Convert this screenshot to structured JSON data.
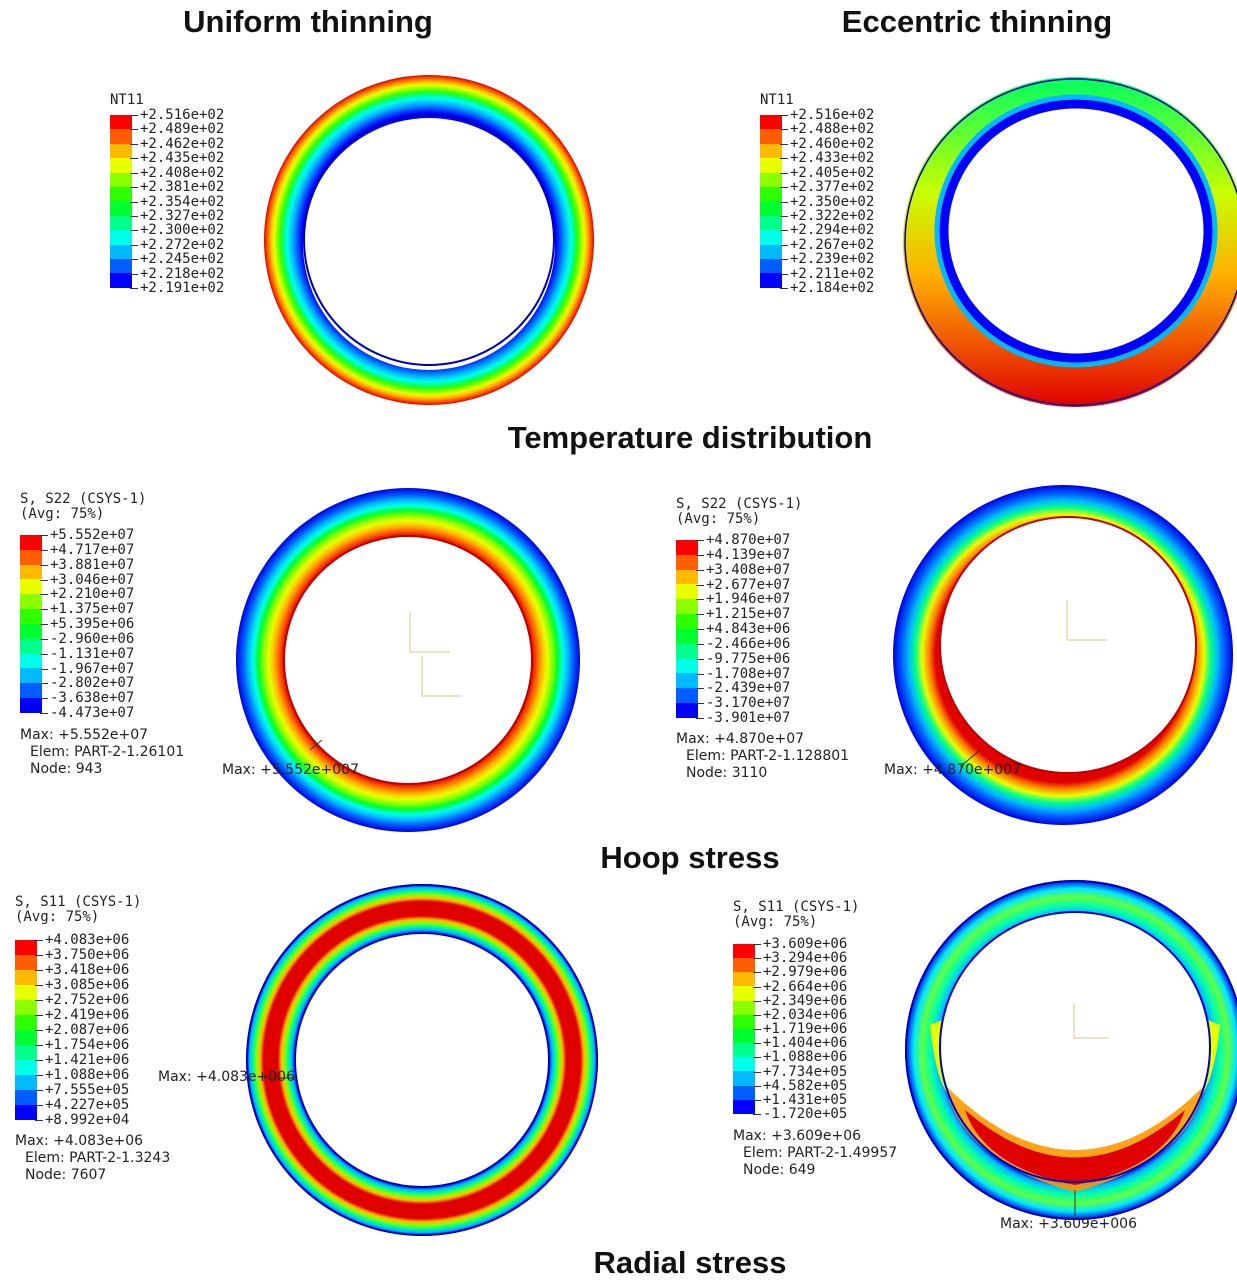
{
  "titles": {
    "uniform": "Uniform thinning",
    "eccentric": "Eccentric thinning",
    "temperature": "Temperature distribution",
    "hoop": "Hoop stress",
    "radial": "Radial stress"
  },
  "colormap": [
    "#0000ff",
    "#005dff",
    "#00b9ff",
    "#00ffe8",
    "#00ff8b",
    "#00ff2e",
    "#2eff00",
    "#8bff00",
    "#e8ff00",
    "#ffb900",
    "#ff5d00",
    "#ff0000"
  ],
  "panels": {
    "temp_uniform": {
      "header": [
        "NT11"
      ],
      "values": [
        "+2.516e+02",
        "+2.489e+02",
        "+2.462e+02",
        "+2.435e+02",
        "+2.408e+02",
        "+2.381e+02",
        "+2.354e+02",
        "+2.327e+02",
        "+2.300e+02",
        "+2.272e+02",
        "+2.245e+02",
        "+2.218e+02",
        "+2.191e+02"
      ]
    },
    "temp_eccentric": {
      "header": [
        "NT11"
      ],
      "values": [
        "+2.516e+02",
        "+2.488e+02",
        "+2.460e+02",
        "+2.433e+02",
        "+2.405e+02",
        "+2.377e+02",
        "+2.350e+02",
        "+2.322e+02",
        "+2.294e+02",
        "+2.267e+02",
        "+2.239e+02",
        "+2.211e+02",
        "+2.184e+02"
      ]
    },
    "hoop_uniform": {
      "header": [
        "S, S22 (CSYS-1)",
        "(Avg: 75%)"
      ],
      "values": [
        "+5.552e+07",
        "+4.717e+07",
        "+3.881e+07",
        "+3.046e+07",
        "+2.210e+07",
        "+1.375e+07",
        "+5.395e+06",
        "-2.960e+06",
        "-1.131e+07",
        "-1.967e+07",
        "-2.802e+07",
        "-3.638e+07",
        "-4.473e+07"
      ],
      "info": [
        "Max: +5.552e+07",
        "Elem: PART-2-1.26101",
        "Node: 943"
      ],
      "max_label": "Max: +5.552e+007"
    },
    "hoop_eccentric": {
      "header": [
        "S, S22 (CSYS-1)",
        "(Avg: 75%)"
      ],
      "values": [
        "+4.870e+07",
        "+4.139e+07",
        "+3.408e+07",
        "+2.677e+07",
        "+1.946e+07",
        "+1.215e+07",
        "+4.843e+06",
        "-2.466e+06",
        "-9.775e+06",
        "-1.708e+07",
        "-2.439e+07",
        "-3.170e+07",
        "-3.901e+07"
      ],
      "info": [
        "Max: +4.870e+07",
        "Elem: PART-2-1.128801",
        "Node: 3110"
      ],
      "max_label": "Max: +4.870e+007"
    },
    "radial_uniform": {
      "header": [
        "S, S11 (CSYS-1)",
        "(Avg: 75%)"
      ],
      "values": [
        "+4.083e+06",
        "+3.750e+06",
        "+3.418e+06",
        "+3.085e+06",
        "+2.752e+06",
        "+2.419e+06",
        "+2.087e+06",
        "+1.754e+06",
        "+1.421e+06",
        "+1.088e+06",
        "+7.555e+05",
        "+4.227e+05",
        "+8.992e+04"
      ],
      "info": [
        "Max: +4.083e+06",
        "Elem: PART-2-1.3243",
        "Node: 7607"
      ],
      "max_label": "Max: +4.083e+006"
    },
    "radial_eccentric": {
      "header": [
        "S, S11 (CSYS-1)",
        "(Avg: 75%)"
      ],
      "values": [
        "+3.609e+06",
        "+3.294e+06",
        "+2.979e+06",
        "+2.664e+06",
        "+2.349e+06",
        "+2.034e+06",
        "+1.719e+06",
        "+1.404e+06",
        "+1.088e+06",
        "+7.734e+05",
        "+4.582e+05",
        "+1.431e+05",
        "-1.720e+05"
      ],
      "info": [
        "Max: +3.609e+06",
        "Elem: PART-2-1.49957",
        "Node: 649"
      ],
      "max_label": "Max: +3.609e+006"
    }
  }
}
